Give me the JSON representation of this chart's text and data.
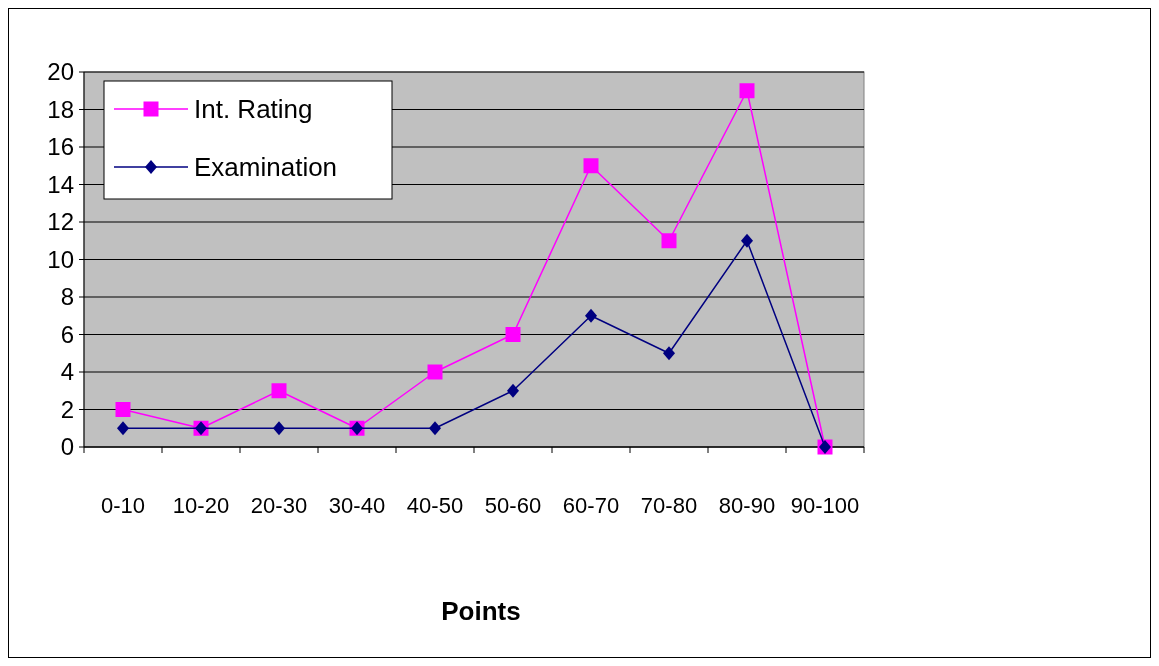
{
  "chart_data": {
    "type": "line",
    "xlabel": "Points",
    "categories": [
      "0-10",
      "10-20",
      "20-30",
      "30-40",
      "40-50",
      "50-60",
      "60-70",
      "70-80",
      "80-90",
      "90-100"
    ],
    "series": [
      {
        "name": "Int. Rating",
        "color": "#ff00ff",
        "marker": "square",
        "values": [
          2,
          1,
          3,
          1,
          4,
          6,
          15,
          11,
          19,
          0
        ]
      },
      {
        "name": "Examination",
        "color": "#000080",
        "marker": "diamond",
        "values": [
          1,
          1,
          1,
          1,
          1,
          3,
          7,
          5,
          11,
          0
        ]
      }
    ],
    "ylim": [
      0,
      20
    ],
    "yticks": [
      0,
      2,
      4,
      6,
      8,
      10,
      12,
      14,
      16,
      18,
      20
    ],
    "grid": "y",
    "legend": "top left"
  }
}
